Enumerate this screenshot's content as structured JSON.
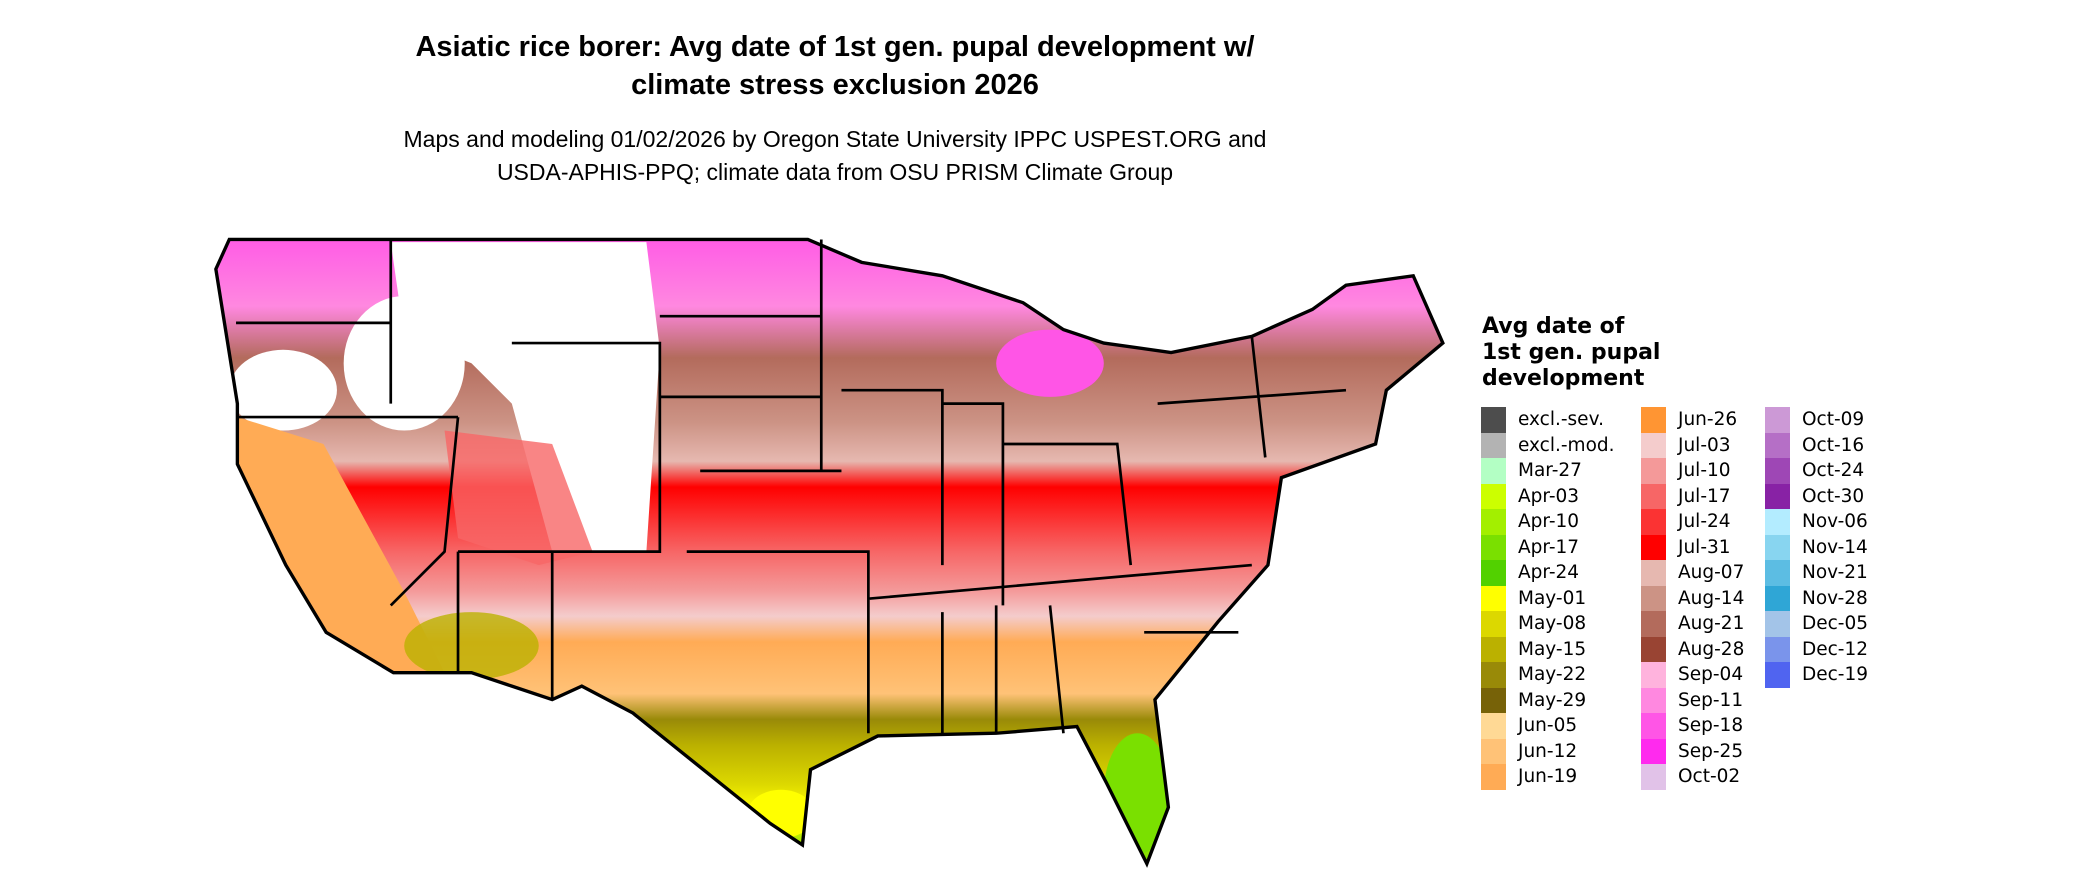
{
  "title": {
    "line1": "Asiatic rice borer: Avg date of 1st gen. pupal development w/",
    "line2": "climate stress exclusion 2026"
  },
  "subtitle": {
    "line1": "Maps and modeling 01/02/2026 by Oregon State University IPPC USPEST.ORG and",
    "line2": "USDA-APHIS-PPQ; climate data from OSU PRISM Climate Group"
  },
  "legend": {
    "title_lines": [
      "Avg date of",
      "1st gen. pupal",
      "development"
    ],
    "columns": [
      [
        {
          "label": "excl.-sev.",
          "color": "#4d4d4d"
        },
        {
          "label": "excl.-mod.",
          "color": "#b3b3b3"
        },
        {
          "label": "Mar-27",
          "color": "#b3ffc4"
        },
        {
          "label": "Apr-03",
          "color": "#ccff00"
        },
        {
          "label": "Apr-10",
          "color": "#a3ef00"
        },
        {
          "label": "Apr-17",
          "color": "#7ae000"
        },
        {
          "label": "Apr-24",
          "color": "#52d100"
        },
        {
          "label": "May-01",
          "color": "#ffff00"
        },
        {
          "label": "May-08",
          "color": "#dcd800"
        },
        {
          "label": "May-15",
          "color": "#bbb100"
        },
        {
          "label": "May-22",
          "color": "#998a08"
        },
        {
          "label": "May-29",
          "color": "#776208"
        },
        {
          "label": "Jun-05",
          "color": "#ffd995"
        },
        {
          "label": "Jun-12",
          "color": "#ffc277"
        },
        {
          "label": "Jun-19",
          "color": "#ffab55"
        }
      ],
      [
        {
          "label": "Jun-26",
          "color": "#ff9533"
        },
        {
          "label": "Jul-03",
          "color": "#f4cccc"
        },
        {
          "label": "Jul-10",
          "color": "#f49999"
        },
        {
          "label": "Jul-17",
          "color": "#f76666"
        },
        {
          "label": "Jul-24",
          "color": "#fb3333"
        },
        {
          "label": "Jul-31",
          "color": "#ff0000"
        },
        {
          "label": "Aug-07",
          "color": "#e6b8b0"
        },
        {
          "label": "Aug-14",
          "color": "#cc9385"
        },
        {
          "label": "Aug-21",
          "color": "#b36b5c"
        },
        {
          "label": "Aug-28",
          "color": "#994433"
        },
        {
          "label": "Sep-04",
          "color": "#ffb3dd"
        },
        {
          "label": "Sep-11",
          "color": "#ff88e0"
        },
        {
          "label": "Sep-18",
          "color": "#ff55e6"
        },
        {
          "label": "Sep-25",
          "color": "#ff2aee"
        },
        {
          "label": "Oct-02",
          "color": "#e1c2e8"
        }
      ],
      [
        {
          "label": "Oct-09",
          "color": "#cc99d6"
        },
        {
          "label": "Oct-16",
          "color": "#b56fc6"
        },
        {
          "label": "Oct-24",
          "color": "#9e47b5"
        },
        {
          "label": "Oct-30",
          "color": "#8822a5"
        },
        {
          "label": "Nov-06",
          "color": "#b3ecff"
        },
        {
          "label": "Nov-14",
          "color": "#88d5f0"
        },
        {
          "label": "Nov-21",
          "color": "#5cbde3"
        },
        {
          "label": "Nov-28",
          "color": "#2fa6d6"
        },
        {
          "label": "Dec-05",
          "color": "#a3c4e8"
        },
        {
          "label": "Dec-12",
          "color": "#7a94eb"
        },
        {
          "label": "Dec-19",
          "color": "#5064f0"
        }
      ]
    ]
  }
}
